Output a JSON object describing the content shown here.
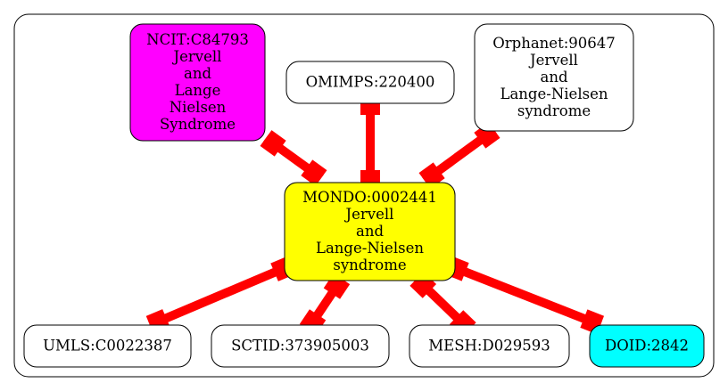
{
  "diagram": {
    "central_node": {
      "id": "mondo",
      "lines": [
        "MONDO:0002441",
        "Jervell",
        "and",
        "Lange-Nielsen",
        "syndrome"
      ],
      "fill": "#ffff00"
    },
    "nodes": [
      {
        "id": "ncit",
        "lines": [
          "NCIT:C84793",
          "Jervell",
          "and",
          "Lange",
          "Nielsen",
          "Syndrome"
        ],
        "fill": "#ff00ff"
      },
      {
        "id": "omimps",
        "lines": [
          "OMIMPS:220400"
        ],
        "fill": "#ffffff"
      },
      {
        "id": "orphanet",
        "lines": [
          "Orphanet:90647",
          "Jervell",
          "and",
          "Lange-Nielsen",
          "syndrome"
        ],
        "fill": "#ffffff"
      },
      {
        "id": "umls",
        "lines": [
          "UMLS:C0022387"
        ],
        "fill": "#ffffff"
      },
      {
        "id": "sctid",
        "lines": [
          "SCTID:373905003"
        ],
        "fill": "#ffffff"
      },
      {
        "id": "mesh",
        "lines": [
          "MESH:D029593"
        ],
        "fill": "#ffffff"
      },
      {
        "id": "doid",
        "lines": [
          "DOID:2842"
        ],
        "fill": "#00ffff"
      }
    ],
    "edges": [
      {
        "from": "ncit",
        "to": "mondo"
      },
      {
        "from": "omimps",
        "to": "mondo"
      },
      {
        "from": "orphanet",
        "to": "mondo"
      },
      {
        "from": "mondo",
        "to": "umls"
      },
      {
        "from": "mondo",
        "to": "sctid"
      },
      {
        "from": "mondo",
        "to": "mesh"
      },
      {
        "from": "mondo",
        "to": "doid"
      }
    ],
    "edge_color": "#ff0000"
  }
}
